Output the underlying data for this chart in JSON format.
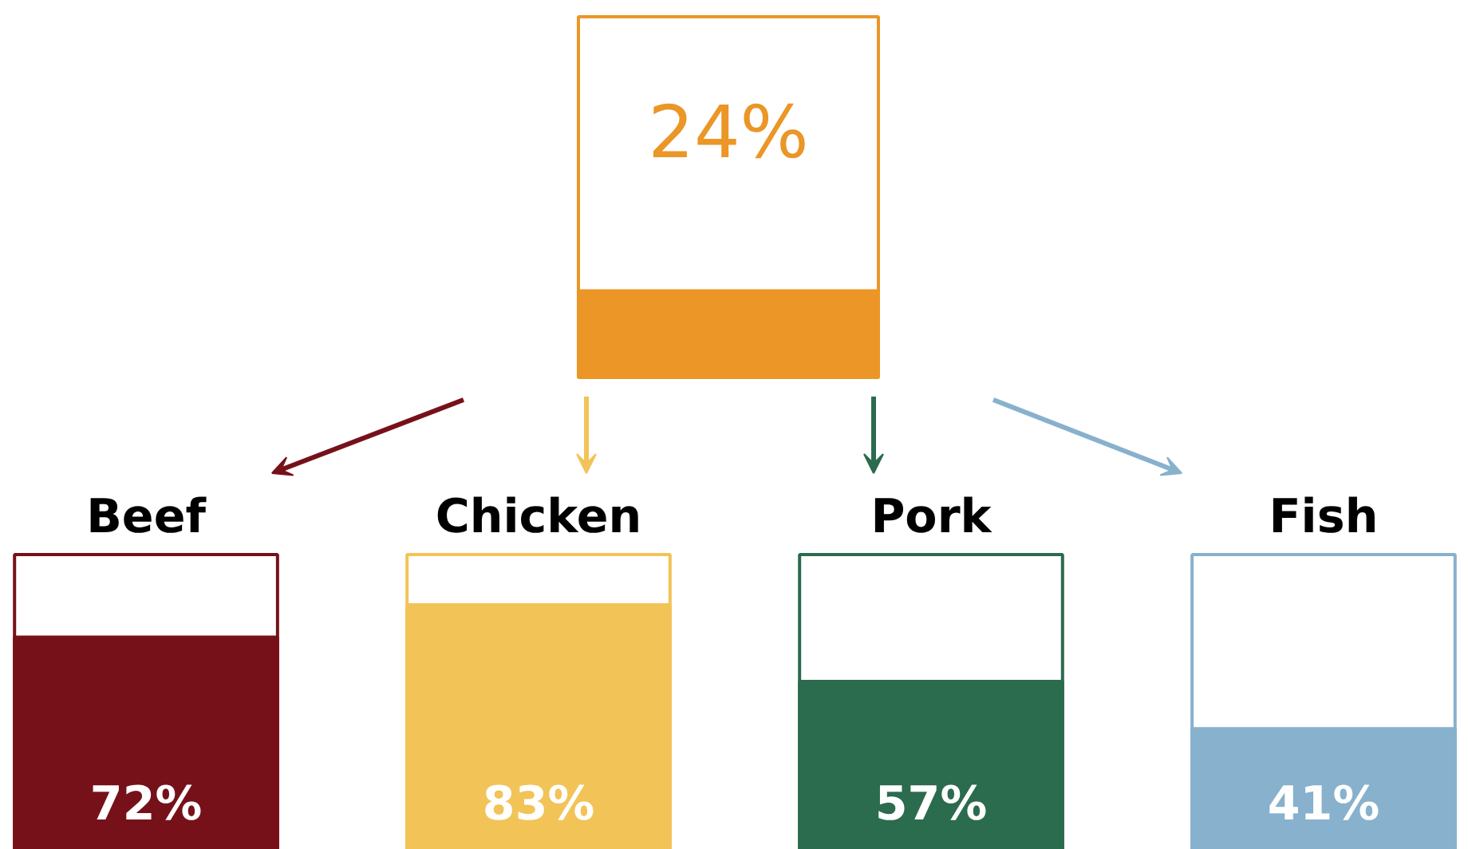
{
  "chart_data": [
    {
      "type": "bar",
      "categories": [
        null
      ],
      "values": [
        24
      ],
      "colors": [
        "#eb9627"
      ],
      "ylim": [
        0,
        100
      ],
      "value_labels": [
        "24%"
      ]
    },
    {
      "type": "bar",
      "categories": [
        "Beef",
        "Chicken",
        "Pork",
        "Fish"
      ],
      "values": [
        72,
        83,
        57,
        41
      ],
      "colors": [
        "#76111a",
        "#f2c357",
        "#2b6b4e",
        "#87b1cc"
      ],
      "ylim": [
        0,
        100
      ],
      "value_labels": [
        "72%",
        "83%",
        "57%",
        "41%"
      ]
    }
  ]
}
